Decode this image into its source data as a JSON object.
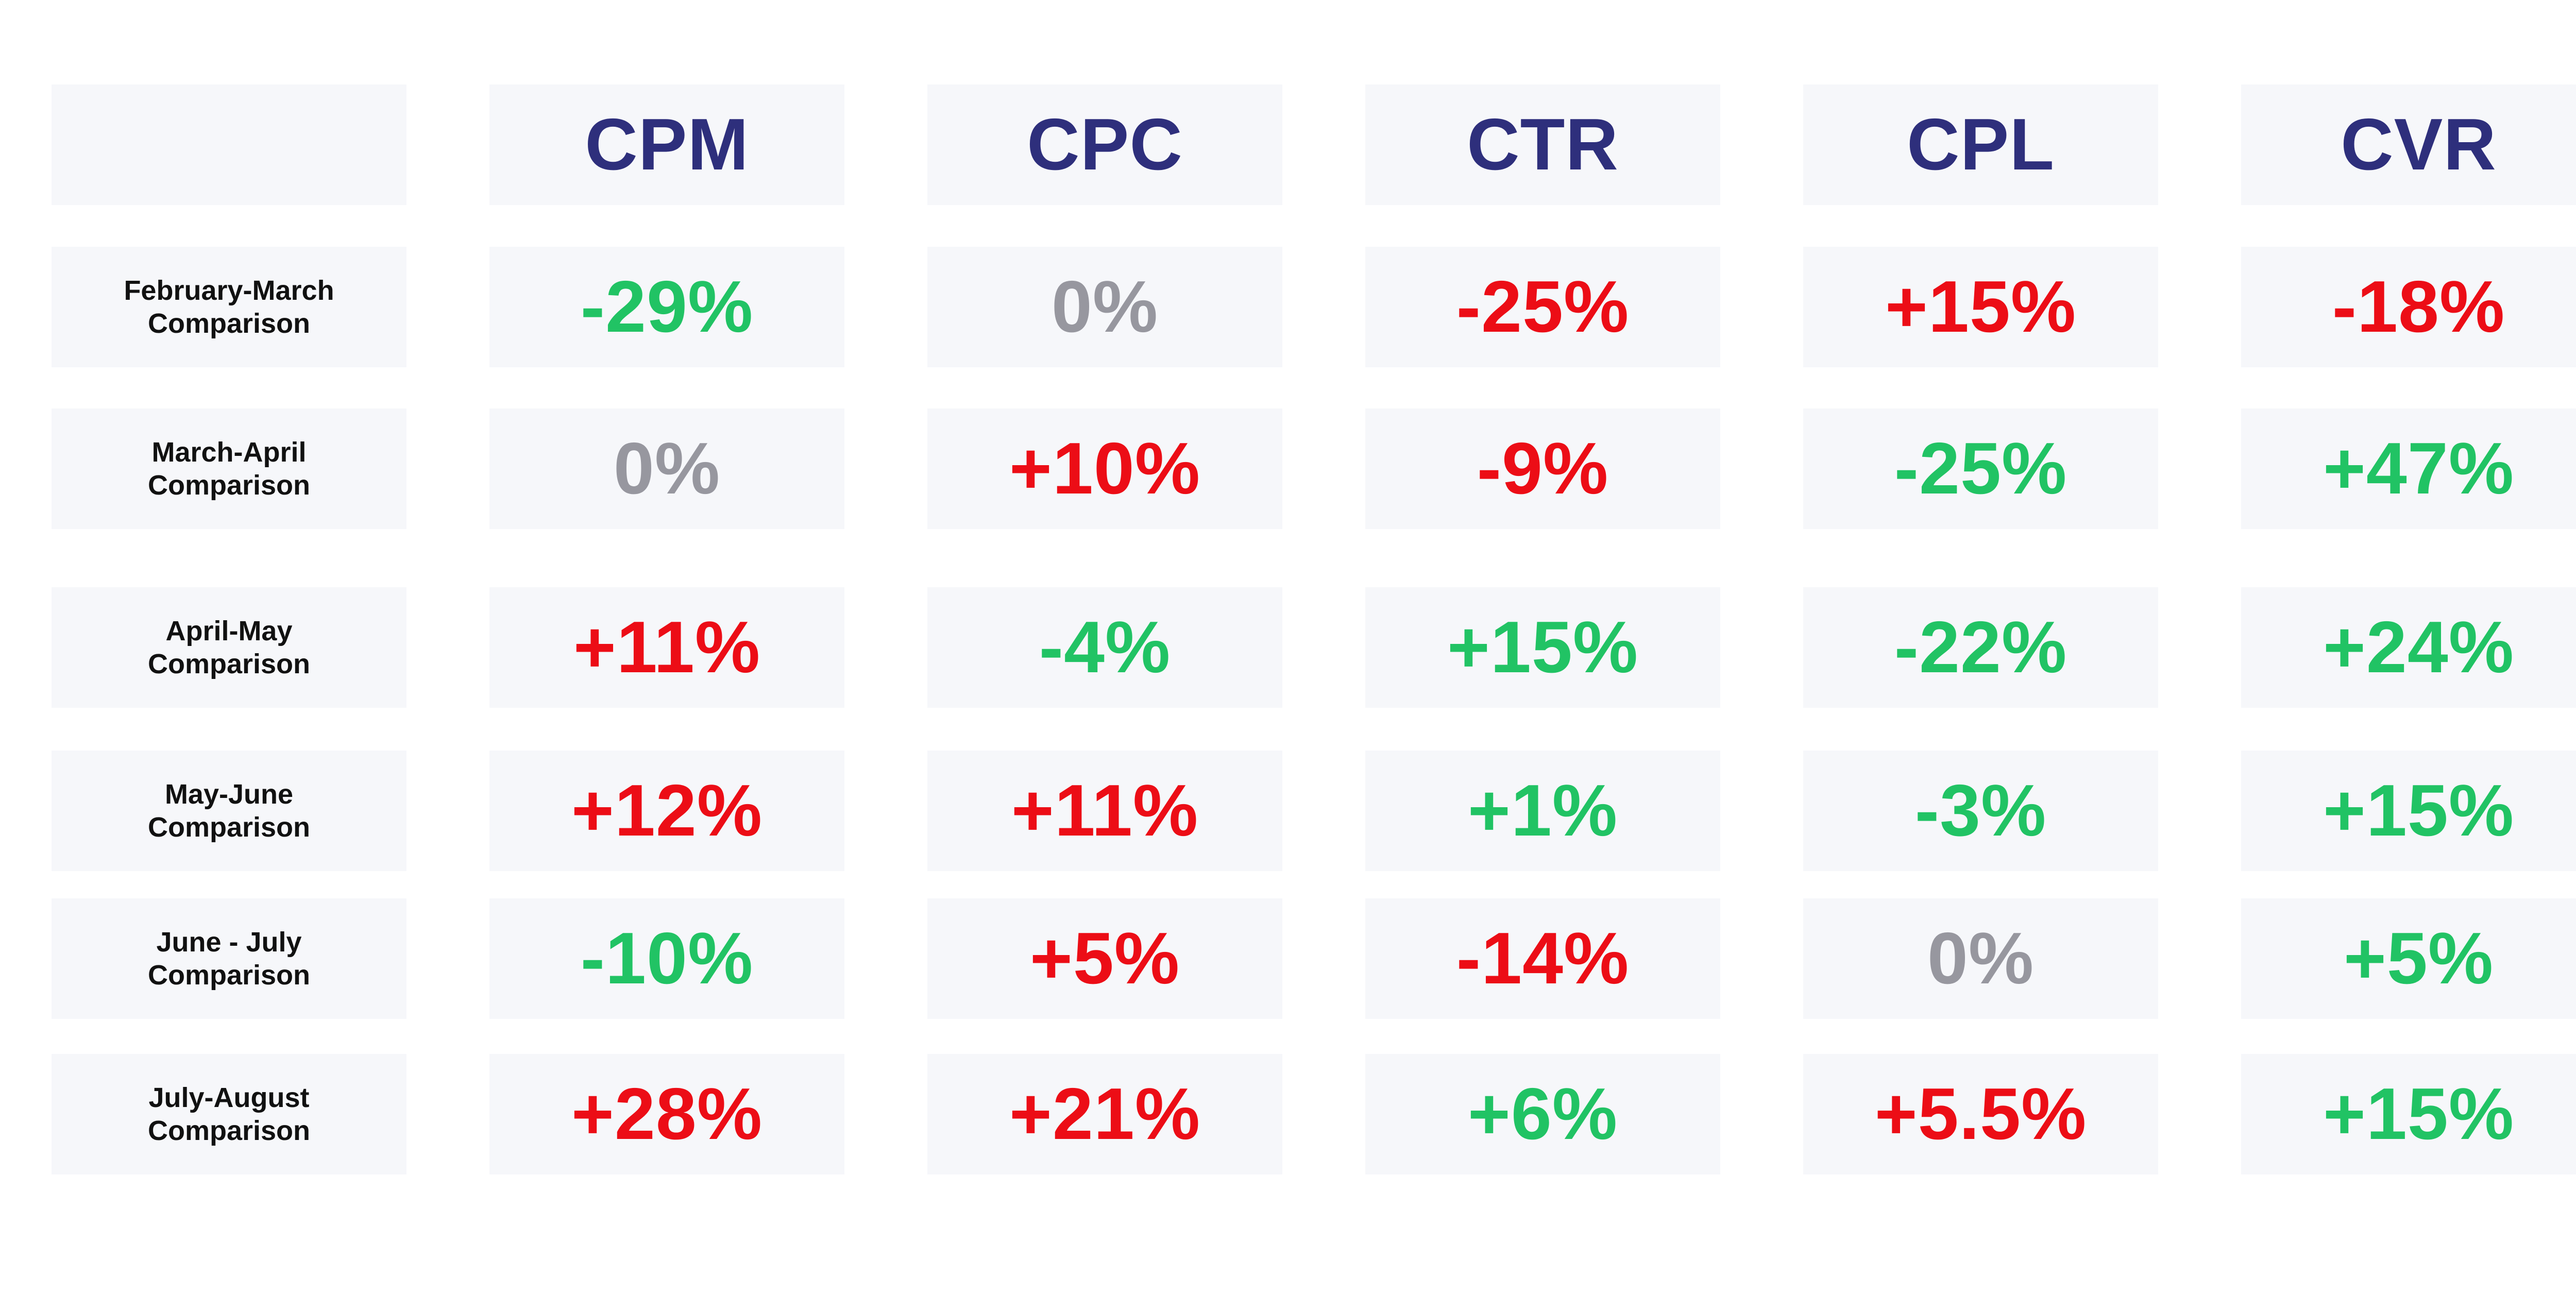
{
  "chart_data": {
    "type": "table",
    "columns": [
      "CPM",
      "CPC",
      "CTR",
      "CPL",
      "CVR"
    ],
    "rows": [
      {
        "label": "February-March\nComparison",
        "values": [
          "-29%",
          "0%",
          "-25%",
          "+15%",
          "-18%"
        ],
        "status": [
          "favorable",
          "neutral",
          "unfavorable",
          "unfavorable",
          "unfavorable"
        ]
      },
      {
        "label": "March-April\nComparison",
        "values": [
          "0%",
          "+10%",
          "-9%",
          "-25%",
          "+47%"
        ],
        "status": [
          "neutral",
          "unfavorable",
          "unfavorable",
          "favorable",
          "favorable"
        ]
      },
      {
        "label": "April-May\nComparison",
        "values": [
          "+11%",
          "-4%",
          "+15%",
          "-22%",
          "+24%"
        ],
        "status": [
          "unfavorable",
          "favorable",
          "favorable",
          "favorable",
          "favorable"
        ]
      },
      {
        "label": "May-June\nComparison",
        "values": [
          "+12%",
          "+11%",
          "+1%",
          "-3%",
          "+15%"
        ],
        "status": [
          "unfavorable",
          "unfavorable",
          "favorable",
          "favorable",
          "favorable"
        ]
      },
      {
        "label": "June - July\nComparison",
        "values": [
          "-10%",
          "+5%",
          "-14%",
          "0%",
          "+5%"
        ],
        "status": [
          "favorable",
          "unfavorable",
          "unfavorable",
          "neutral",
          "favorable"
        ]
      },
      {
        "label": "July-August\nComparison",
        "values": [
          "+28%",
          "+21%",
          "+6%",
          "+5.5%",
          "+15%"
        ],
        "status": [
          "unfavorable",
          "unfavorable",
          "favorable",
          "unfavorable",
          "favorable"
        ]
      }
    ],
    "colors": {
      "header_text": "#2e2f7c",
      "row_label_text": "#111111",
      "cell_background": "#f6f7fa",
      "unfavorable": "#ec0d16",
      "favorable": "#21c364",
      "neutral": "#97979f"
    }
  }
}
